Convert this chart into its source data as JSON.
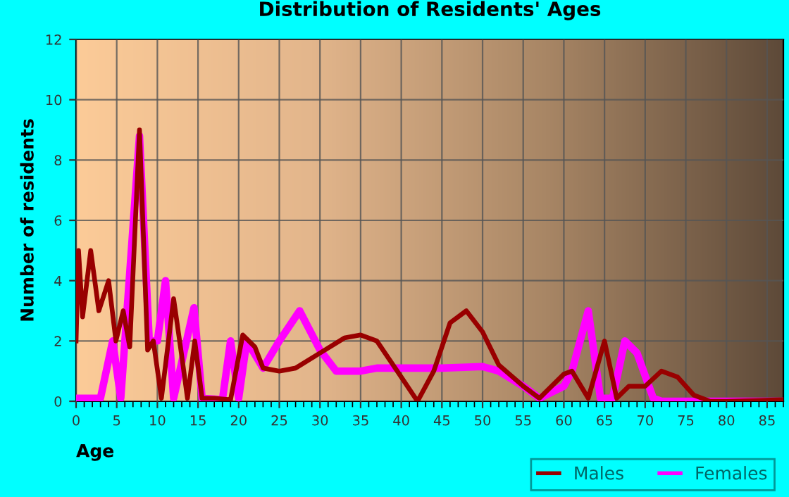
{
  "chart_data": {
    "type": "line",
    "title": "Distribution of Residents' Ages",
    "xlabel": "Age",
    "ylabel": "Number of residents",
    "xlim": [
      0,
      87
    ],
    "xticks": [
      0,
      5,
      10,
      15,
      20,
      25,
      30,
      35,
      40,
      45,
      50,
      55,
      60,
      65,
      70,
      75,
      80,
      85
    ],
    "ylim": [
      0,
      12
    ],
    "yticks": [
      0,
      2,
      4,
      6,
      8,
      10,
      12
    ],
    "grid": true,
    "legend": "bottom right",
    "marker": "none",
    "line_style": "solid",
    "series": [
      {
        "name": "Males",
        "color": "#990000",
        "x": [
          0,
          0.3,
          0.8,
          1.8,
          2.8,
          4,
          4.9,
          5.8,
          6.6,
          7.8,
          8.8,
          9.5,
          10.5,
          12,
          13,
          13.7,
          14.6,
          15.5,
          17,
          19,
          20.5,
          22,
          23,
          25,
          27,
          30,
          33,
          35,
          37,
          40,
          42,
          44,
          46,
          48,
          50,
          52,
          55,
          57,
          60,
          61,
          63,
          65,
          66.5,
          68,
          70,
          72,
          74,
          76,
          78,
          80,
          87
        ],
        "values": [
          2,
          5,
          2.8,
          5,
          3,
          4,
          2,
          3,
          1.8,
          9,
          1.7,
          2,
          0.1,
          3.4,
          1.5,
          0.1,
          2,
          0.1,
          0.1,
          0.05,
          2.2,
          1.8,
          1.1,
          1,
          1.1,
          1.6,
          2.1,
          2.2,
          2,
          0.8,
          0,
          1,
          2.6,
          3,
          2.3,
          1.2,
          0.5,
          0.1,
          0.9,
          1,
          0.1,
          2,
          0.1,
          0.5,
          0.5,
          1,
          0.8,
          0.2,
          0,
          0,
          0.05
        ]
      },
      {
        "name": "Females",
        "color": "#ff00ff",
        "x": [
          0,
          3,
          4.5,
          5.5,
          7.8,
          9,
          10,
          11,
          12,
          14.5,
          15.5,
          18,
          19,
          20,
          21,
          23,
          25,
          27.5,
          30,
          32,
          35,
          37,
          45,
          50,
          52,
          55,
          57,
          60,
          61,
          63,
          64.5,
          66,
          67.5,
          69,
          71,
          72,
          87
        ],
        "values": [
          0.1,
          0.1,
          2,
          0.1,
          8.8,
          2,
          2,
          4,
          0.1,
          3.1,
          0.1,
          0.05,
          2,
          0.1,
          2,
          1.1,
          2,
          3,
          1.7,
          1,
          1,
          1.1,
          1.1,
          1.15,
          1,
          0.5,
          0.1,
          0.5,
          1,
          3,
          0.1,
          0.1,
          2,
          1.6,
          0.1,
          0,
          0
        ]
      }
    ]
  }
}
